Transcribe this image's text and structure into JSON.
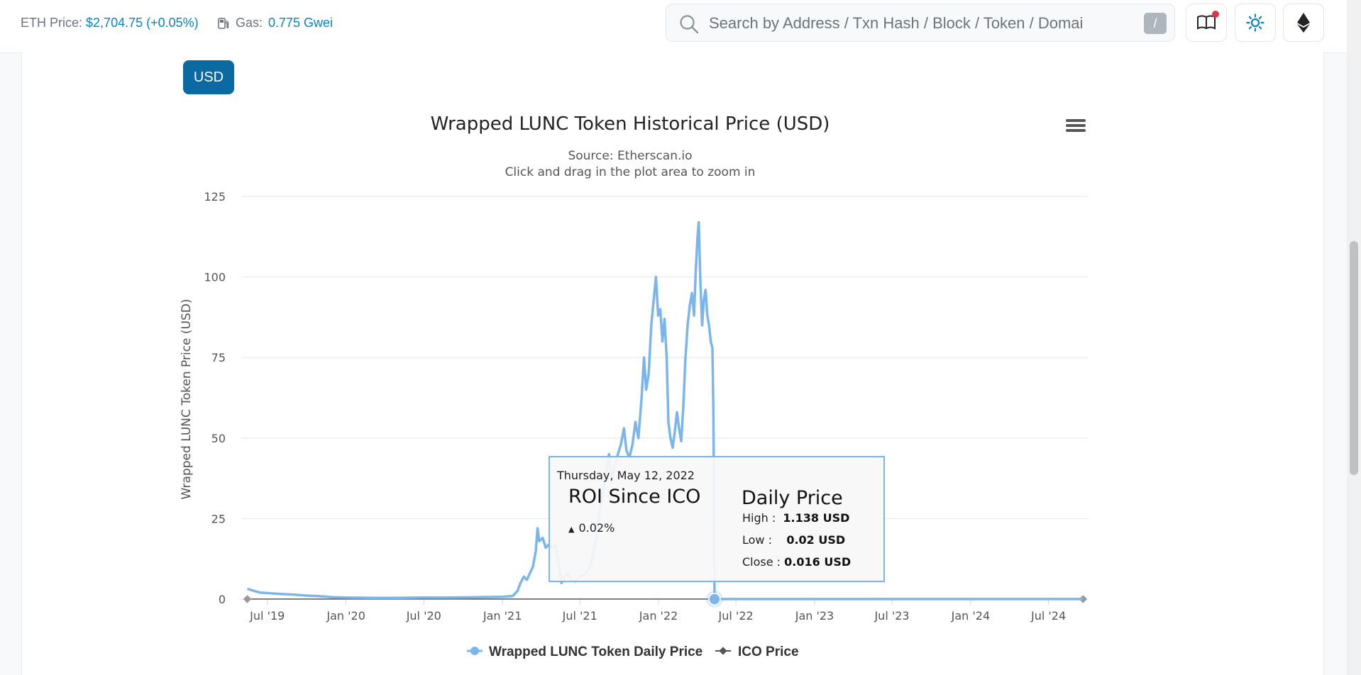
{
  "header": {
    "eth_price_label": "ETH Price:",
    "eth_price_value": "$2,704.75 (+0.05%)",
    "gas_label": "Gas:",
    "gas_value": "0.775 Gwei",
    "search_placeholder": "Search by Address / Txn Hash / Block / Token / Domai",
    "search_shortcut": "/",
    "icons": [
      "gas-pump-icon",
      "search-icon",
      "book-icon",
      "sun-icon",
      "ethereum-icon"
    ],
    "accent_color": "#0784c3"
  },
  "currency_button": {
    "label": "USD",
    "color": "#0a6aa1"
  },
  "chart_data": {
    "type": "line",
    "title": "Wrapped LUNC Token Historical Price (USD)",
    "subtitle_source": "Source: Etherscan.io",
    "subtitle_hint": "Click and drag in the plot area to zoom in",
    "ylabel": "Wrapped LUNC Token Price (USD)",
    "xlabel": "",
    "ylim": [
      0,
      125
    ],
    "yticks": [
      0,
      25,
      50,
      75,
      100,
      125
    ],
    "xlim": [
      "2019-05-01",
      "2024-10-01"
    ],
    "xticks": [
      {
        "date": "2019-07-01",
        "label": "Jul '19"
      },
      {
        "date": "2020-01-01",
        "label": "Jan '20"
      },
      {
        "date": "2020-07-01",
        "label": "Jul '20"
      },
      {
        "date": "2021-01-01",
        "label": "Jan '21"
      },
      {
        "date": "2021-07-01",
        "label": "Jul '21"
      },
      {
        "date": "2022-01-01",
        "label": "Jan '22"
      },
      {
        "date": "2022-07-01",
        "label": "Jul '22"
      },
      {
        "date": "2023-01-01",
        "label": "Jan '23"
      },
      {
        "date": "2023-07-01",
        "label": "Jul '23"
      },
      {
        "date": "2024-01-01",
        "label": "Jan '24"
      },
      {
        "date": "2024-07-01",
        "label": "Jul '24"
      }
    ],
    "grid": true,
    "legend_position": "bottom-center",
    "series": [
      {
        "name": "Wrapped LUNC Token Daily Price",
        "color": "#7cb5ec",
        "points": [
          [
            "2019-05-15",
            3.2
          ],
          [
            "2019-06-01",
            2.5
          ],
          [
            "2019-06-15",
            2.0
          ],
          [
            "2019-07-01",
            1.9
          ],
          [
            "2019-08-01",
            1.6
          ],
          [
            "2019-09-01",
            1.4
          ],
          [
            "2019-10-01",
            1.1
          ],
          [
            "2019-11-01",
            0.9
          ],
          [
            "2019-12-01",
            0.6
          ],
          [
            "2020-01-01",
            0.5
          ],
          [
            "2020-03-01",
            0.4
          ],
          [
            "2020-05-01",
            0.4
          ],
          [
            "2020-07-01",
            0.5
          ],
          [
            "2020-09-01",
            0.5
          ],
          [
            "2020-11-01",
            0.6
          ],
          [
            "2021-01-01",
            0.7
          ],
          [
            "2021-01-25",
            1.0
          ],
          [
            "2021-02-05",
            2.5
          ],
          [
            "2021-02-12",
            5.0
          ],
          [
            "2021-02-20",
            7.0
          ],
          [
            "2021-02-27",
            6.0
          ],
          [
            "2021-03-06",
            8.0
          ],
          [
            "2021-03-13",
            10.0
          ],
          [
            "2021-03-20",
            15.0
          ],
          [
            "2021-03-24",
            22.0
          ],
          [
            "2021-03-28",
            18.0
          ],
          [
            "2021-04-05",
            19.0
          ],
          [
            "2021-04-12",
            16.0
          ],
          [
            "2021-04-20",
            17.0
          ],
          [
            "2021-04-28",
            16.0
          ],
          [
            "2021-05-05",
            17.0
          ],
          [
            "2021-05-13",
            10.0
          ],
          [
            "2021-05-19",
            5.0
          ],
          [
            "2021-05-25",
            7.0
          ],
          [
            "2021-06-02",
            8.0
          ],
          [
            "2021-06-10",
            6.0
          ],
          [
            "2021-06-20",
            5.5
          ],
          [
            "2021-07-01",
            7.0
          ],
          [
            "2021-07-12",
            7.5
          ],
          [
            "2021-07-25",
            10.0
          ],
          [
            "2021-08-01",
            14.0
          ],
          [
            "2021-08-10",
            20.0
          ],
          [
            "2021-08-17",
            28.0
          ],
          [
            "2021-08-24",
            33.0
          ],
          [
            "2021-09-01",
            40.0
          ],
          [
            "2021-09-07",
            45.0
          ],
          [
            "2021-09-14",
            36.0
          ],
          [
            "2021-09-21",
            42.0
          ],
          [
            "2021-09-28",
            45.0
          ],
          [
            "2021-10-05",
            48.0
          ],
          [
            "2021-10-12",
            53.0
          ],
          [
            "2021-10-18",
            46.0
          ],
          [
            "2021-10-25",
            44.0
          ],
          [
            "2021-11-01",
            48.0
          ],
          [
            "2021-11-08",
            55.0
          ],
          [
            "2021-11-15",
            50.0
          ],
          [
            "2021-11-22",
            62.0
          ],
          [
            "2021-11-28",
            75.0
          ],
          [
            "2021-12-03",
            65.0
          ],
          [
            "2021-12-09",
            70.0
          ],
          [
            "2021-12-15",
            85.0
          ],
          [
            "2021-12-20",
            92.0
          ],
          [
            "2021-12-26",
            100.0
          ],
          [
            "2021-12-31",
            88.0
          ],
          [
            "2022-01-05",
            90.0
          ],
          [
            "2022-01-10",
            80.0
          ],
          [
            "2022-01-15",
            87.0
          ],
          [
            "2022-01-20",
            75.0
          ],
          [
            "2022-01-24",
            55.0
          ],
          [
            "2022-01-29",
            50.0
          ],
          [
            "2022-02-03",
            47.0
          ],
          [
            "2022-02-08",
            52.0
          ],
          [
            "2022-02-13",
            58.0
          ],
          [
            "2022-02-18",
            53.0
          ],
          [
            "2022-02-23",
            49.0
          ],
          [
            "2022-02-28",
            60.0
          ],
          [
            "2022-03-05",
            75.0
          ],
          [
            "2022-03-10",
            85.0
          ],
          [
            "2022-03-15",
            91.0
          ],
          [
            "2022-03-20",
            95.0
          ],
          [
            "2022-03-25",
            88.0
          ],
          [
            "2022-03-29",
            102.0
          ],
          [
            "2022-04-02",
            112.0
          ],
          [
            "2022-04-05",
            117.0
          ],
          [
            "2022-04-09",
            98.0
          ],
          [
            "2022-04-13",
            85.0
          ],
          [
            "2022-04-17",
            93.0
          ],
          [
            "2022-04-21",
            96.0
          ],
          [
            "2022-04-25",
            88.0
          ],
          [
            "2022-04-29",
            85.0
          ],
          [
            "2022-05-03",
            80.0
          ],
          [
            "2022-05-07",
            78.0
          ],
          [
            "2022-05-09",
            60.0
          ],
          [
            "2022-05-10",
            45.0
          ],
          [
            "2022-05-11",
            15.0
          ],
          [
            "2022-05-12",
            1.138
          ],
          [
            "2022-05-20",
            0.05
          ],
          [
            "2022-07-01",
            0.03
          ],
          [
            "2023-01-01",
            0.02
          ],
          [
            "2023-07-01",
            0.02
          ],
          [
            "2024-01-01",
            0.02
          ],
          [
            "2024-09-20",
            0.02
          ]
        ]
      },
      {
        "name": "ICO Price",
        "color": "#555555",
        "points": [
          [
            "2019-05-15",
            0.016
          ],
          [
            "2024-09-20",
            0.016
          ]
        ]
      }
    ],
    "tooltip": {
      "date": "Thursday, May 12, 2022",
      "roi_heading": "ROI Since ICO",
      "roi_value": "0.02%",
      "daily_heading": "Daily Price",
      "high_label": "High :",
      "high_value": "1.138 USD",
      "low_label": "Low :",
      "low_value": "0.02 USD",
      "close_label": "Close :",
      "close_value": "0.016 USD"
    }
  }
}
